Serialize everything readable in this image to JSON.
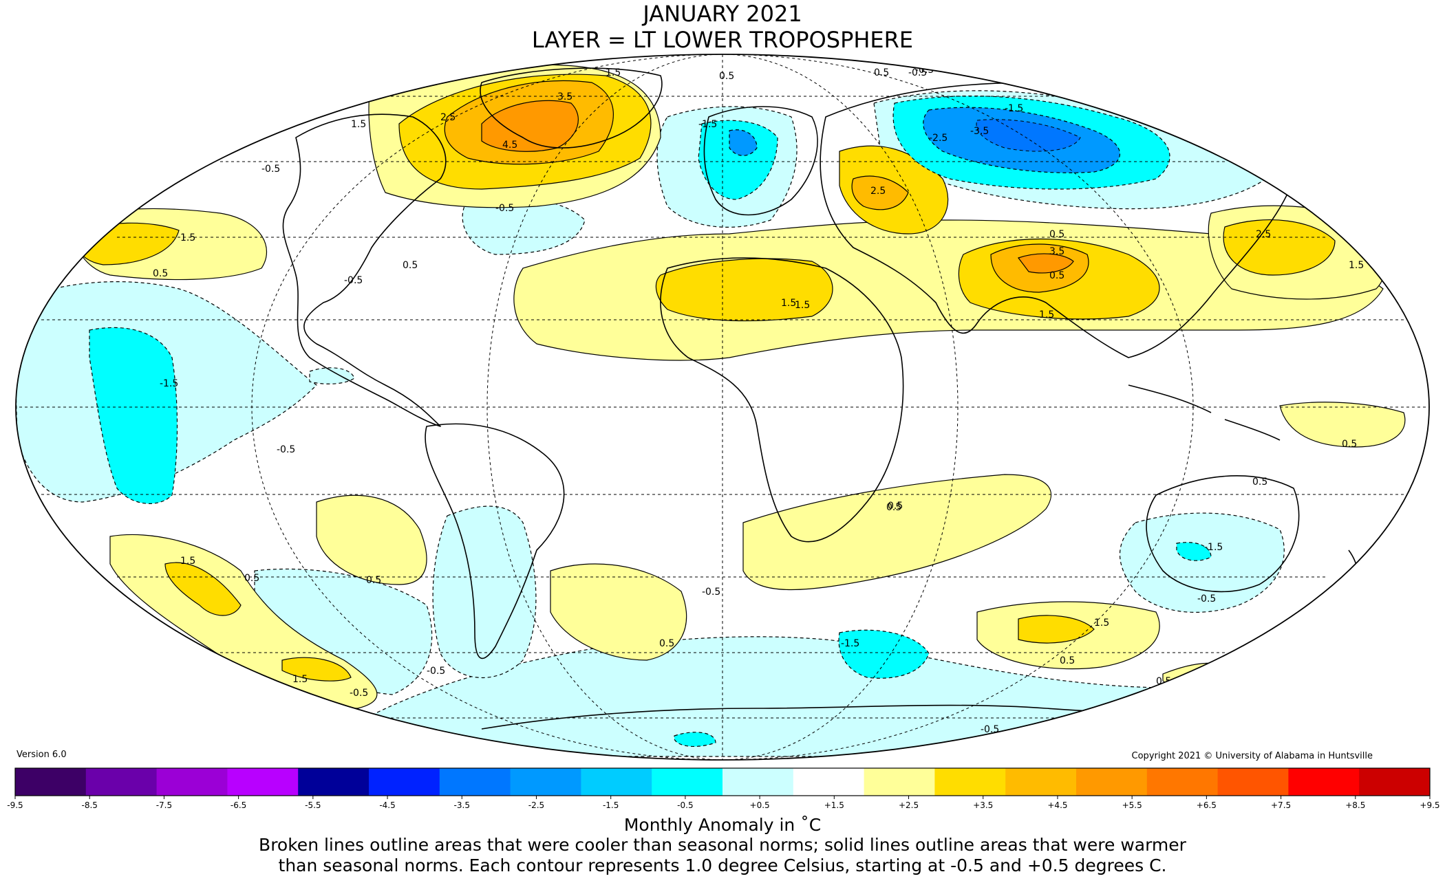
{
  "title": {
    "line1": "JANUARY 2021",
    "line2": "LAYER = LT LOWER TROPOSPHERE"
  },
  "version": "Version 6.0",
  "copyright": "Copyright 2021 © University of Alabama in Huntsville",
  "colorbar": {
    "label": "Monthly Anomaly in ˚C",
    "ticks": [
      "-9.5",
      "-8.5",
      "-7.5",
      "-6.5",
      "-5.5",
      "-4.5",
      "-3.5",
      "-2.5",
      "-1.5",
      "-0.5",
      "+0.5",
      "+1.5",
      "+2.5",
      "+3.5",
      "+4.5",
      "+5.5",
      "+6.5",
      "+7.5",
      "+8.5",
      "+9.5"
    ],
    "colors": [
      "#3d0066",
      "#6a00aa",
      "#9b00d6",
      "#b800ff",
      "#000099",
      "#0022ff",
      "#0077ff",
      "#0099ff",
      "#00ccff",
      "#00ffff",
      "#ccffff",
      "#ffffff",
      "#ffff99",
      "#ffdd00",
      "#ffbb00",
      "#ff9900",
      "#ff7700",
      "#ff5500",
      "#ff0000",
      "#cc0000"
    ]
  },
  "note": {
    "line1": "Broken lines outline areas that were cooler than seasonal norms; solid lines outline areas that were warmer",
    "line2": "than seasonal norms. Each contour represents 1.0 degree Celsius, starting at -0.5 and +0.5 degrees C."
  },
  "map": {
    "projection": "Mollweide",
    "anomaly_regions": [
      {
        "name": "canada-greenland-warm",
        "category": "+2.5 to +4.5",
        "color": "#ffbb00",
        "labels": [
          "1.5",
          "2.5",
          "3.5",
          "4.5"
        ]
      },
      {
        "name": "europe-cool",
        "category": "-1.5 to -2.5",
        "color": "#00ffff",
        "labels": [
          "-1.5"
        ]
      },
      {
        "name": "siberia-cool",
        "category": "-2.5 to -3.5",
        "color": "#0099ff",
        "labels": [
          "-1.5",
          "-2.5",
          "-3.5"
        ]
      },
      {
        "name": "middle-east-warm",
        "category": "+1.5 to +2.5",
        "color": "#ffdd00",
        "labels": [
          "1.5",
          "2.5"
        ]
      },
      {
        "name": "north-africa-warm",
        "category": "+1.5 to +2.5",
        "color": "#ffdd00",
        "labels": [
          "1.5"
        ]
      },
      {
        "name": "tibet-warm",
        "category": "+2.5 to +3.5",
        "color": "#ffbb00",
        "labels": [
          "3.5",
          "1.5",
          "0.5"
        ]
      },
      {
        "name": "north-pacific-warm",
        "category": "+1.5 to +2.5",
        "color": "#ffdd00",
        "labels": [
          "2.5",
          "1.5"
        ]
      },
      {
        "name": "tropical-pacific-cool",
        "category": "-1.5",
        "color": "#00ffff",
        "labels": [
          "-1.5",
          "-0.5"
        ]
      },
      {
        "name": "southern-ocean-cool",
        "category": "-1.5",
        "color": "#00ffff",
        "labels": [
          "-1.5",
          "-0.5"
        ]
      },
      {
        "name": "south-pacific-warm",
        "category": "+1.5",
        "color": "#ffdd00",
        "labels": [
          "1.5",
          "0.5"
        ]
      },
      {
        "name": "australia-cool",
        "category": "-0.5",
        "color": "#ccffff",
        "labels": [
          "-0.5",
          "1.5"
        ]
      }
    ],
    "contour_labels": [
      "1.5",
      "2.5",
      "3.5",
      "4.5",
      "1.5",
      "0.5",
      "-0.5",
      "-0.5",
      "0.5",
      "-1.5",
      "-2.5",
      "-3.5",
      "-1.5",
      "-0.5",
      "-0.5",
      "0.5",
      "2.5",
      "1.5",
      "0.5",
      "1.5",
      "3.5",
      "1.5",
      "2.5",
      "1.5",
      "0.5",
      "-1.5",
      "-0.5",
      "-1.5",
      "-0.5",
      "0.5",
      "0.5",
      "0.5",
      "1.5",
      "0.5",
      "-0.5",
      "1.5",
      "0.5",
      "-1.5",
      "1.5",
      "0.5",
      "-0.5",
      "0.5",
      "-0.5",
      "1.5",
      "0.5",
      "0.5",
      "-0.5",
      "0.5",
      "-0.5"
    ]
  }
}
